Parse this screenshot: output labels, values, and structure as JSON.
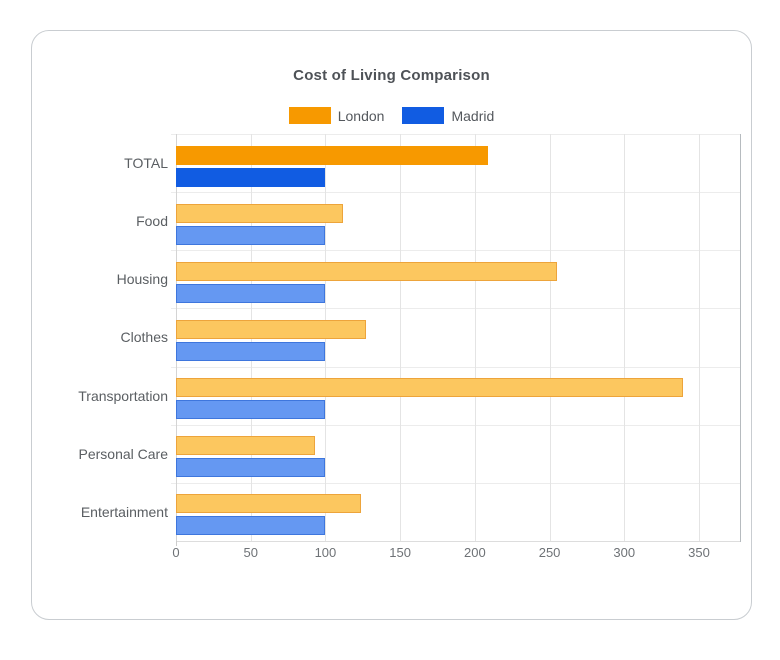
{
  "chart_data": {
    "type": "bar",
    "orientation": "horizontal",
    "title": "Cost of Living Comparison",
    "categories": [
      "TOTAL",
      "Food",
      "Housing",
      "Clothes",
      "Transportation",
      "Personal Care",
      "Entertainment"
    ],
    "series": [
      {
        "name": "London",
        "values": [
          209,
          112,
          255,
          127,
          339,
          93,
          124
        ],
        "color": "#f79900",
        "light_fill": "#fcc75f",
        "light_border": "#eda43b"
      },
      {
        "name": "Madrid",
        "values": [
          100,
          100,
          100,
          100,
          100,
          100,
          100
        ],
        "color": "#115ce2",
        "light_fill": "#6598f2",
        "light_border": "#3e76dd"
      }
    ],
    "emphasized_category": "TOTAL",
    "x_ticks": [
      "0",
      "50",
      "100",
      "150",
      "200",
      "250",
      "300",
      "350"
    ],
    "xlim": [
      0,
      377
    ],
    "xlabel": "",
    "ylabel": "",
    "grid": true,
    "legend_position": "top-center"
  },
  "style_colors": {
    "grid_color": "#e4e4e4",
    "zero_line_color": "#d4d4d4",
    "axis_line_color": "#dddddd",
    "plot_right_border": "#b6bbbf",
    "card_border": "#c9cdd1",
    "title_color": "#4e5257",
    "label_color": "#5a5e62"
  }
}
